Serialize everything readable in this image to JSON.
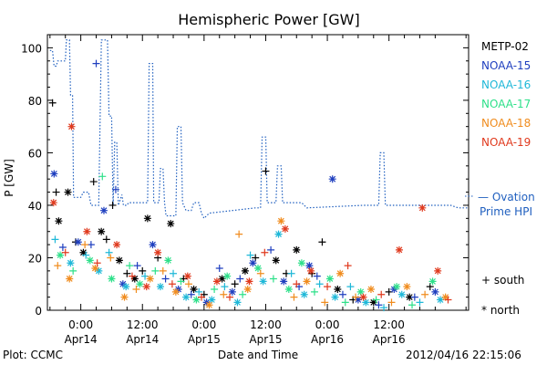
{
  "chart_data": {
    "type": "scatter",
    "title": "Hemispheric Power [GW]",
    "ylabel": "P [GW]",
    "xlabel": "Date and Time",
    "ylim": [
      0,
      105
    ],
    "xlim_hours": [
      -6.5,
      75.5
    ],
    "yticks": [
      0,
      20,
      40,
      60,
      80,
      100
    ],
    "xticks": [
      {
        "h": 0,
        "time": "0:00",
        "date": "Apr14"
      },
      {
        "h": 12,
        "time": "12:00",
        "date": "Apr14"
      },
      {
        "h": 24,
        "time": "0:00",
        "date": "Apr15"
      },
      {
        "h": 36,
        "time": "12:00",
        "date": "Apr15"
      },
      {
        "h": 48,
        "time": "0:00",
        "date": "Apr16"
      },
      {
        "h": 60,
        "time": "12:00",
        "date": "Apr16"
      }
    ],
    "grid": false,
    "legend_position": "right",
    "series": [
      {
        "name": "METP-02",
        "color": "#000000"
      },
      {
        "name": "NOAA-15",
        "color": "#1f3fbf"
      },
      {
        "name": "NOAA-16",
        "color": "#1fb8d8"
      },
      {
        "name": "NOAA-17",
        "color": "#2ee08a"
      },
      {
        "name": "NOAA-18",
        "color": "#f08c1e"
      },
      {
        "name": "NOAA-19",
        "color": "#e03a1e"
      }
    ],
    "ovation": {
      "label": "— Ovation Prime HPI",
      "color": "#1f5fbf",
      "points": [
        [
          -6,
          99
        ],
        [
          -5.5,
          99
        ],
        [
          -5.2,
          93
        ],
        [
          -4.8,
          93
        ],
        [
          -4.5,
          95
        ],
        [
          -3,
          95
        ],
        [
          -2.8,
          103
        ],
        [
          -2.2,
          103
        ],
        [
          -2,
          82
        ],
        [
          -1.6,
          82
        ],
        [
          -1.4,
          43
        ],
        [
          0,
          43
        ],
        [
          0.5,
          45
        ],
        [
          1.5,
          45
        ],
        [
          2,
          40
        ],
        [
          3.5,
          40
        ],
        [
          4,
          103
        ],
        [
          5,
          103
        ],
        [
          5.2,
          103
        ],
        [
          5.5,
          74
        ],
        [
          6,
          74
        ],
        [
          6.3,
          40
        ],
        [
          6.6,
          64
        ],
        [
          7,
          64
        ],
        [
          7.3,
          40
        ],
        [
          8,
          44
        ],
        [
          8.3,
          40
        ],
        [
          9,
          40
        ],
        [
          9.3,
          41
        ],
        [
          13,
          41
        ],
        [
          13.3,
          94
        ],
        [
          14,
          94
        ],
        [
          14.2,
          41
        ],
        [
          15.2,
          41
        ],
        [
          15.5,
          54
        ],
        [
          16,
          54
        ],
        [
          16.3,
          41
        ],
        [
          16.6,
          36
        ],
        [
          17.2,
          36
        ],
        [
          17.5,
          36
        ],
        [
          18.5,
          36
        ],
        [
          18.8,
          70
        ],
        [
          19.5,
          70
        ],
        [
          19.8,
          41
        ],
        [
          20.5,
          38
        ],
        [
          21.5,
          38
        ],
        [
          22,
          41
        ],
        [
          23,
          41
        ],
        [
          23.5,
          37
        ],
        [
          24,
          35
        ],
        [
          25,
          37
        ],
        [
          34,
          39
        ],
        [
          35,
          39
        ],
        [
          35.3,
          66
        ],
        [
          36,
          66
        ],
        [
          36.3,
          41
        ],
        [
          38,
          41
        ],
        [
          38.3,
          55
        ],
        [
          39,
          55
        ],
        [
          39.3,
          41
        ],
        [
          43,
          41
        ],
        [
          44,
          39
        ],
        [
          55,
          40
        ],
        [
          58,
          40
        ],
        [
          58.3,
          60
        ],
        [
          59,
          60
        ],
        [
          59.3,
          40
        ],
        [
          72,
          40
        ],
        [
          73.5,
          39
        ],
        [
          75.5,
          39
        ]
      ]
    },
    "points": [
      {
        "s": 0,
        "h": -5.5,
        "v": 79,
        "m": "+"
      },
      {
        "s": 0,
        "h": -4.8,
        "v": 45,
        "m": "+"
      },
      {
        "s": 0,
        "h": -4.3,
        "v": 34,
        "m": "*"
      },
      {
        "s": 0,
        "h": -2.5,
        "v": 45,
        "m": "*"
      },
      {
        "s": 0,
        "h": -1,
        "v": 26,
        "m": "+"
      },
      {
        "s": 0,
        "h": 0.5,
        "v": 22,
        "m": "*"
      },
      {
        "s": 0,
        "h": 2.5,
        "v": 49,
        "m": "+"
      },
      {
        "s": 0,
        "h": 4,
        "v": 30,
        "m": "*"
      },
      {
        "s": 0,
        "h": 5,
        "v": 27,
        "m": "+"
      },
      {
        "s": 0,
        "h": 6.2,
        "v": 40,
        "m": "+"
      },
      {
        "s": 0,
        "h": 7.5,
        "v": 19,
        "m": "*"
      },
      {
        "s": 0,
        "h": 9,
        "v": 14,
        "m": "+"
      },
      {
        "s": 0,
        "h": 10.5,
        "v": 12,
        "m": "*"
      },
      {
        "s": 0,
        "h": 12,
        "v": 15,
        "m": "+"
      },
      {
        "s": 0,
        "h": 13,
        "v": 35,
        "m": "*"
      },
      {
        "s": 0,
        "h": 15,
        "v": 20,
        "m": "+"
      },
      {
        "s": 0,
        "h": 17.5,
        "v": 33,
        "m": "*"
      },
      {
        "s": 0,
        "h": 20,
        "v": 12,
        "m": "+"
      },
      {
        "s": 0,
        "h": 22,
        "v": 8,
        "m": "*"
      },
      {
        "s": 0,
        "h": 24,
        "v": 6,
        "m": "+"
      },
      {
        "s": 0,
        "h": 27.5,
        "v": 12,
        "m": "*"
      },
      {
        "s": 0,
        "h": 30,
        "v": 10,
        "m": "+"
      },
      {
        "s": 0,
        "h": 32,
        "v": 15,
        "m": "*"
      },
      {
        "s": 0,
        "h": 34,
        "v": 20,
        "m": "+"
      },
      {
        "s": 0,
        "h": 36,
        "v": 53,
        "m": "+"
      },
      {
        "s": 0,
        "h": 38,
        "v": 19,
        "m": "*"
      },
      {
        "s": 0,
        "h": 40,
        "v": 14,
        "m": "+"
      },
      {
        "s": 0,
        "h": 42,
        "v": 23,
        "m": "*"
      },
      {
        "s": 0,
        "h": 45,
        "v": 14,
        "m": "+"
      },
      {
        "s": 0,
        "h": 47,
        "v": 26,
        "m": "+"
      },
      {
        "s": 0,
        "h": 50,
        "v": 8,
        "m": "*"
      },
      {
        "s": 0,
        "h": 53,
        "v": 4,
        "m": "+"
      },
      {
        "s": 0,
        "h": 57,
        "v": 3,
        "m": "*"
      },
      {
        "s": 0,
        "h": 60,
        "v": 7,
        "m": "+"
      },
      {
        "s": 0,
        "h": 64,
        "v": 5,
        "m": "*"
      },
      {
        "s": 0,
        "h": 68,
        "v": 9,
        "m": "+"
      },
      {
        "s": 1,
        "h": -5.2,
        "v": 52,
        "m": "*"
      },
      {
        "s": 1,
        "h": -3.5,
        "v": 24,
        "m": "+"
      },
      {
        "s": 1,
        "h": -0.5,
        "v": 26,
        "m": "*"
      },
      {
        "s": 1,
        "h": 2,
        "v": 25,
        "m": "+"
      },
      {
        "s": 1,
        "h": 3,
        "v": 94,
        "m": "+"
      },
      {
        "s": 1,
        "h": 4.5,
        "v": 38,
        "m": "*"
      },
      {
        "s": 1,
        "h": 6.8,
        "v": 46,
        "m": "+"
      },
      {
        "s": 1,
        "h": 8.2,
        "v": 10,
        "m": "*"
      },
      {
        "s": 1,
        "h": 11,
        "v": 17,
        "m": "+"
      },
      {
        "s": 1,
        "h": 14,
        "v": 25,
        "m": "*"
      },
      {
        "s": 1,
        "h": 16.5,
        "v": 12,
        "m": "+"
      },
      {
        "s": 1,
        "h": 19,
        "v": 8,
        "m": "*"
      },
      {
        "s": 1,
        "h": 21.5,
        "v": 6,
        "m": "+"
      },
      {
        "s": 1,
        "h": 24.5,
        "v": 3,
        "m": "*"
      },
      {
        "s": 1,
        "h": 27,
        "v": 16,
        "m": "+"
      },
      {
        "s": 1,
        "h": 29.5,
        "v": 7,
        "m": "*"
      },
      {
        "s": 1,
        "h": 31,
        "v": 12,
        "m": "+"
      },
      {
        "s": 1,
        "h": 33.5,
        "v": 18,
        "m": "*"
      },
      {
        "s": 1,
        "h": 37,
        "v": 23,
        "m": "+"
      },
      {
        "s": 1,
        "h": 39.5,
        "v": 11,
        "m": "*"
      },
      {
        "s": 1,
        "h": 42.5,
        "v": 9,
        "m": "+"
      },
      {
        "s": 1,
        "h": 44.5,
        "v": 17,
        "m": "*"
      },
      {
        "s": 1,
        "h": 46,
        "v": 13,
        "m": "+"
      },
      {
        "s": 1,
        "h": 49,
        "v": 50,
        "m": "*"
      },
      {
        "s": 1,
        "h": 51,
        "v": 6,
        "m": "+"
      },
      {
        "s": 1,
        "h": 54,
        "v": 4,
        "m": "*"
      },
      {
        "s": 1,
        "h": 58,
        "v": 2,
        "m": "+"
      },
      {
        "s": 1,
        "h": 61,
        "v": 8,
        "m": "*"
      },
      {
        "s": 1,
        "h": 65,
        "v": 5,
        "m": "+"
      },
      {
        "s": 1,
        "h": 69,
        "v": 7,
        "m": "*"
      },
      {
        "s": 2,
        "h": -5,
        "v": 27,
        "m": "+"
      },
      {
        "s": 2,
        "h": -2,
        "v": 18,
        "m": "*"
      },
      {
        "s": 2,
        "h": 1,
        "v": 21,
        "m": "+"
      },
      {
        "s": 2,
        "h": 3.5,
        "v": 15,
        "m": "*"
      },
      {
        "s": 2,
        "h": 5.5,
        "v": 22,
        "m": "+"
      },
      {
        "s": 2,
        "h": 8.8,
        "v": 9,
        "m": "*"
      },
      {
        "s": 2,
        "h": 12.5,
        "v": 13,
        "m": "+"
      },
      {
        "s": 2,
        "h": 15.5,
        "v": 9,
        "m": "*"
      },
      {
        "s": 2,
        "h": 18,
        "v": 14,
        "m": "+"
      },
      {
        "s": 2,
        "h": 20.5,
        "v": 5,
        "m": "*"
      },
      {
        "s": 2,
        "h": 23,
        "v": 7,
        "m": "+"
      },
      {
        "s": 2,
        "h": 25.5,
        "v": 4,
        "m": "*"
      },
      {
        "s": 2,
        "h": 28,
        "v": 9,
        "m": "+"
      },
      {
        "s": 2,
        "h": 30.5,
        "v": 3,
        "m": "*"
      },
      {
        "s": 2,
        "h": 33,
        "v": 21,
        "m": "+"
      },
      {
        "s": 2,
        "h": 35.5,
        "v": 11,
        "m": "*"
      },
      {
        "s": 2,
        "h": 38.5,
        "v": 29,
        "m": "*"
      },
      {
        "s": 2,
        "h": 41,
        "v": 14,
        "m": "+"
      },
      {
        "s": 2,
        "h": 43.5,
        "v": 6,
        "m": "*"
      },
      {
        "s": 2,
        "h": 46.5,
        "v": 10,
        "m": "+"
      },
      {
        "s": 2,
        "h": 49.5,
        "v": 5,
        "m": "*"
      },
      {
        "s": 2,
        "h": 52.5,
        "v": 9,
        "m": "+"
      },
      {
        "s": 2,
        "h": 55.5,
        "v": 3,
        "m": "*"
      },
      {
        "s": 2,
        "h": 59,
        "v": 1,
        "m": "+"
      },
      {
        "s": 2,
        "h": 62.5,
        "v": 6,
        "m": "*"
      },
      {
        "s": 2,
        "h": 66,
        "v": 3,
        "m": "+"
      },
      {
        "s": 2,
        "h": 70,
        "v": 4,
        "m": "*"
      },
      {
        "s": 3,
        "h": -4,
        "v": 21,
        "m": "*"
      },
      {
        "s": 3,
        "h": -1.5,
        "v": 15,
        "m": "+"
      },
      {
        "s": 3,
        "h": 1.8,
        "v": 19,
        "m": "*"
      },
      {
        "s": 3,
        "h": 4.2,
        "v": 51,
        "m": "+"
      },
      {
        "s": 3,
        "h": 6,
        "v": 12,
        "m": "*"
      },
      {
        "s": 3,
        "h": 9.5,
        "v": 17,
        "m": "+"
      },
      {
        "s": 3,
        "h": 11.5,
        "v": 10,
        "m": "*"
      },
      {
        "s": 3,
        "h": 14.5,
        "v": 15,
        "m": "+"
      },
      {
        "s": 3,
        "h": 17,
        "v": 19,
        "m": "*"
      },
      {
        "s": 3,
        "h": 19.5,
        "v": 11,
        "m": "+"
      },
      {
        "s": 3,
        "h": 22.5,
        "v": 4,
        "m": "*"
      },
      {
        "s": 3,
        "h": 26,
        "v": 8,
        "m": "+"
      },
      {
        "s": 3,
        "h": 28.5,
        "v": 13,
        "m": "*"
      },
      {
        "s": 3,
        "h": 31.5,
        "v": 6,
        "m": "+"
      },
      {
        "s": 3,
        "h": 34.5,
        "v": 16,
        "m": "*"
      },
      {
        "s": 3,
        "h": 37.5,
        "v": 12,
        "m": "+"
      },
      {
        "s": 3,
        "h": 40.5,
        "v": 8,
        "m": "*"
      },
      {
        "s": 3,
        "h": 43,
        "v": 18,
        "m": "*"
      },
      {
        "s": 3,
        "h": 45.5,
        "v": 7,
        "m": "+"
      },
      {
        "s": 3,
        "h": 48.5,
        "v": 12,
        "m": "*"
      },
      {
        "s": 3,
        "h": 51.5,
        "v": 3,
        "m": "+"
      },
      {
        "s": 3,
        "h": 54.5,
        "v": 7,
        "m": "*"
      },
      {
        "s": 3,
        "h": 57.5,
        "v": 4,
        "m": "+"
      },
      {
        "s": 3,
        "h": 61.5,
        "v": 9,
        "m": "*"
      },
      {
        "s": 3,
        "h": 64.5,
        "v": 2,
        "m": "+"
      },
      {
        "s": 3,
        "h": 68.5,
        "v": 11,
        "m": "*"
      },
      {
        "s": 4,
        "h": -4.5,
        "v": 17,
        "m": "+"
      },
      {
        "s": 4,
        "h": -2.2,
        "v": 12,
        "m": "*"
      },
      {
        "s": 4,
        "h": 0.8,
        "v": 25,
        "m": "+"
      },
      {
        "s": 4,
        "h": 2.8,
        "v": 16,
        "m": "*"
      },
      {
        "s": 4,
        "h": 5.8,
        "v": 20,
        "m": "+"
      },
      {
        "s": 4,
        "h": 8.5,
        "v": 5,
        "m": "*"
      },
      {
        "s": 4,
        "h": 10.8,
        "v": 8,
        "m": "+"
      },
      {
        "s": 4,
        "h": 13.5,
        "v": 12,
        "m": "*"
      },
      {
        "s": 4,
        "h": 16,
        "v": 15,
        "m": "+"
      },
      {
        "s": 4,
        "h": 18.5,
        "v": 7,
        "m": "*"
      },
      {
        "s": 4,
        "h": 21,
        "v": 10,
        "m": "+"
      },
      {
        "s": 4,
        "h": 25,
        "v": 2,
        "m": "*"
      },
      {
        "s": 4,
        "h": 27.8,
        "v": 6,
        "m": "+"
      },
      {
        "s": 4,
        "h": 30.8,
        "v": 29,
        "m": "+"
      },
      {
        "s": 4,
        "h": 32.5,
        "v": 8,
        "m": "*"
      },
      {
        "s": 4,
        "h": 35,
        "v": 14,
        "m": "+"
      },
      {
        "s": 4,
        "h": 39,
        "v": 34,
        "m": "*"
      },
      {
        "s": 4,
        "h": 41.5,
        "v": 5,
        "m": "+"
      },
      {
        "s": 4,
        "h": 44,
        "v": 11,
        "m": "*"
      },
      {
        "s": 4,
        "h": 47.5,
        "v": 3,
        "m": "+"
      },
      {
        "s": 4,
        "h": 50.5,
        "v": 14,
        "m": "*"
      },
      {
        "s": 4,
        "h": 53.5,
        "v": 5,
        "m": "+"
      },
      {
        "s": 4,
        "h": 56.5,
        "v": 8,
        "m": "*"
      },
      {
        "s": 4,
        "h": 60.5,
        "v": 3,
        "m": "+"
      },
      {
        "s": 4,
        "h": 63.5,
        "v": 9,
        "m": "*"
      },
      {
        "s": 4,
        "h": 67,
        "v": 6,
        "m": "+"
      },
      {
        "s": 4,
        "h": 71,
        "v": 5,
        "m": "*"
      },
      {
        "s": 5,
        "h": -5.3,
        "v": 41,
        "m": "*"
      },
      {
        "s": 5,
        "h": -3,
        "v": 22,
        "m": "+"
      },
      {
        "s": 5,
        "h": -1.8,
        "v": 70,
        "m": "*"
      },
      {
        "s": 5,
        "h": 1.2,
        "v": 30,
        "m": "*"
      },
      {
        "s": 5,
        "h": 3.2,
        "v": 18,
        "m": "+"
      },
      {
        "s": 5,
        "h": 7,
        "v": 25,
        "m": "*"
      },
      {
        "s": 5,
        "h": 10,
        "v": 13,
        "m": "+"
      },
      {
        "s": 5,
        "h": 12.8,
        "v": 9,
        "m": "*"
      },
      {
        "s": 5,
        "h": 15,
        "v": 22,
        "m": "*"
      },
      {
        "s": 5,
        "h": 17.8,
        "v": 10,
        "m": "+"
      },
      {
        "s": 5,
        "h": 20.8,
        "v": 13,
        "m": "*"
      },
      {
        "s": 5,
        "h": 23.5,
        "v": 5,
        "m": "+"
      },
      {
        "s": 5,
        "h": 26.5,
        "v": 11,
        "m": "*"
      },
      {
        "s": 5,
        "h": 29,
        "v": 5,
        "m": "+"
      },
      {
        "s": 5,
        "h": 32.8,
        "v": 11,
        "m": "*"
      },
      {
        "s": 5,
        "h": 35.8,
        "v": 22,
        "m": "+"
      },
      {
        "s": 5,
        "h": 39.8,
        "v": 31,
        "m": "*"
      },
      {
        "s": 5,
        "h": 42,
        "v": 10,
        "m": "+"
      },
      {
        "s": 5,
        "h": 44.8,
        "v": 15,
        "m": "*"
      },
      {
        "s": 5,
        "h": 48,
        "v": 9,
        "m": "+"
      },
      {
        "s": 5,
        "h": 52,
        "v": 17,
        "m": "+"
      },
      {
        "s": 5,
        "h": 55,
        "v": 5,
        "m": "*"
      },
      {
        "s": 5,
        "h": 58.5,
        "v": 6,
        "m": "+"
      },
      {
        "s": 5,
        "h": 62,
        "v": 23,
        "m": "*"
      },
      {
        "s": 5,
        "h": 66.5,
        "v": 39,
        "m": "*"
      },
      {
        "s": 5,
        "h": 69.5,
        "v": 15,
        "m": "*"
      },
      {
        "s": 5,
        "h": 71.5,
        "v": 4,
        "m": "+"
      }
    ],
    "marker_legend": [
      {
        "symbol": "+",
        "label": "south"
      },
      {
        "symbol": "*",
        "label": "north"
      }
    ]
  },
  "footer": {
    "left": "Plot: CCMC",
    "right": "2012/04/16 22:15:06"
  }
}
